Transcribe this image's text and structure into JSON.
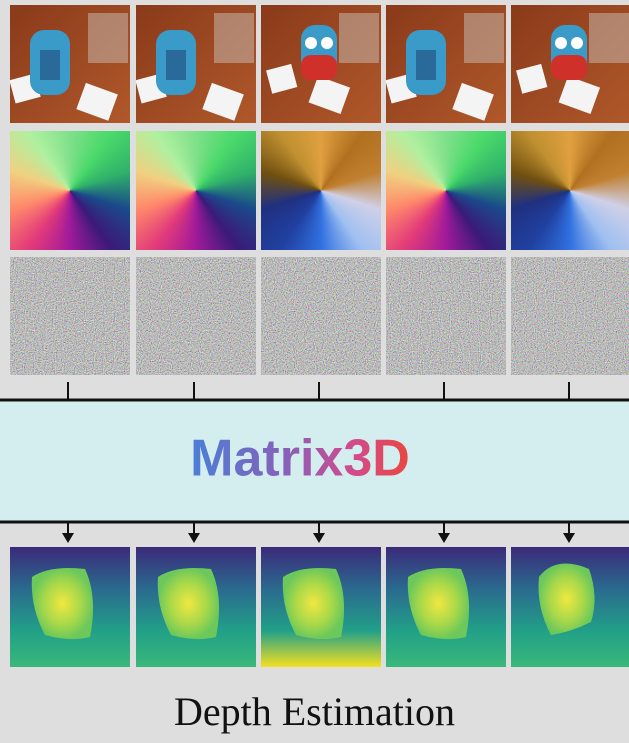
{
  "diagram": {
    "model": "Matrix3D",
    "task": "Depth Estimation"
  }
}
